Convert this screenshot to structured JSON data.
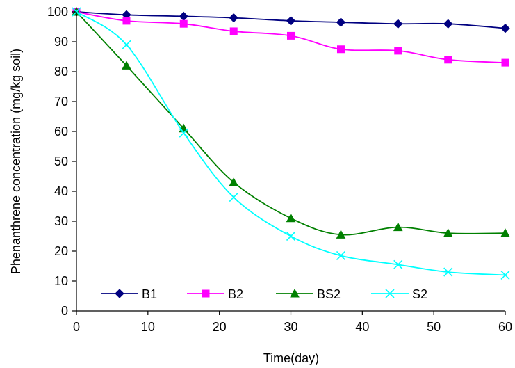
{
  "chart_data": {
    "type": "line",
    "title": "",
    "xlabel": "Time(day)",
    "ylabel": "Phenanthrene concentration (mg/kg soil)",
    "xlim": [
      0,
      60
    ],
    "ylim": [
      0,
      100
    ],
    "x_ticks": [
      0,
      10,
      20,
      30,
      40,
      50,
      60
    ],
    "y_ticks": [
      0,
      10,
      20,
      30,
      40,
      50,
      60,
      70,
      80,
      90,
      100
    ],
    "grid": false,
    "legend_position": "bottom",
    "smooth": true,
    "x": [
      0,
      7,
      15,
      22,
      30,
      37,
      45,
      52,
      60
    ],
    "series": [
      {
        "name": "B1",
        "color": "#000080",
        "marker": "diamond",
        "values": [
          100,
          99,
          98.5,
          98,
          97,
          96.5,
          96,
          96,
          94.5
        ]
      },
      {
        "name": "B2",
        "color": "#FF00FF",
        "marker": "square",
        "values": [
          100,
          97,
          96,
          93.5,
          92,
          87.5,
          87,
          84,
          83
        ]
      },
      {
        "name": "BS2",
        "color": "#008000",
        "marker": "triangle",
        "values": [
          100,
          82,
          61,
          43,
          31,
          25.5,
          28,
          26,
          26
        ]
      },
      {
        "name": "S2",
        "color": "#00FFFF",
        "marker": "x",
        "values": [
          100,
          89,
          59.5,
          38,
          25,
          18.5,
          15.5,
          13,
          12
        ]
      }
    ]
  }
}
